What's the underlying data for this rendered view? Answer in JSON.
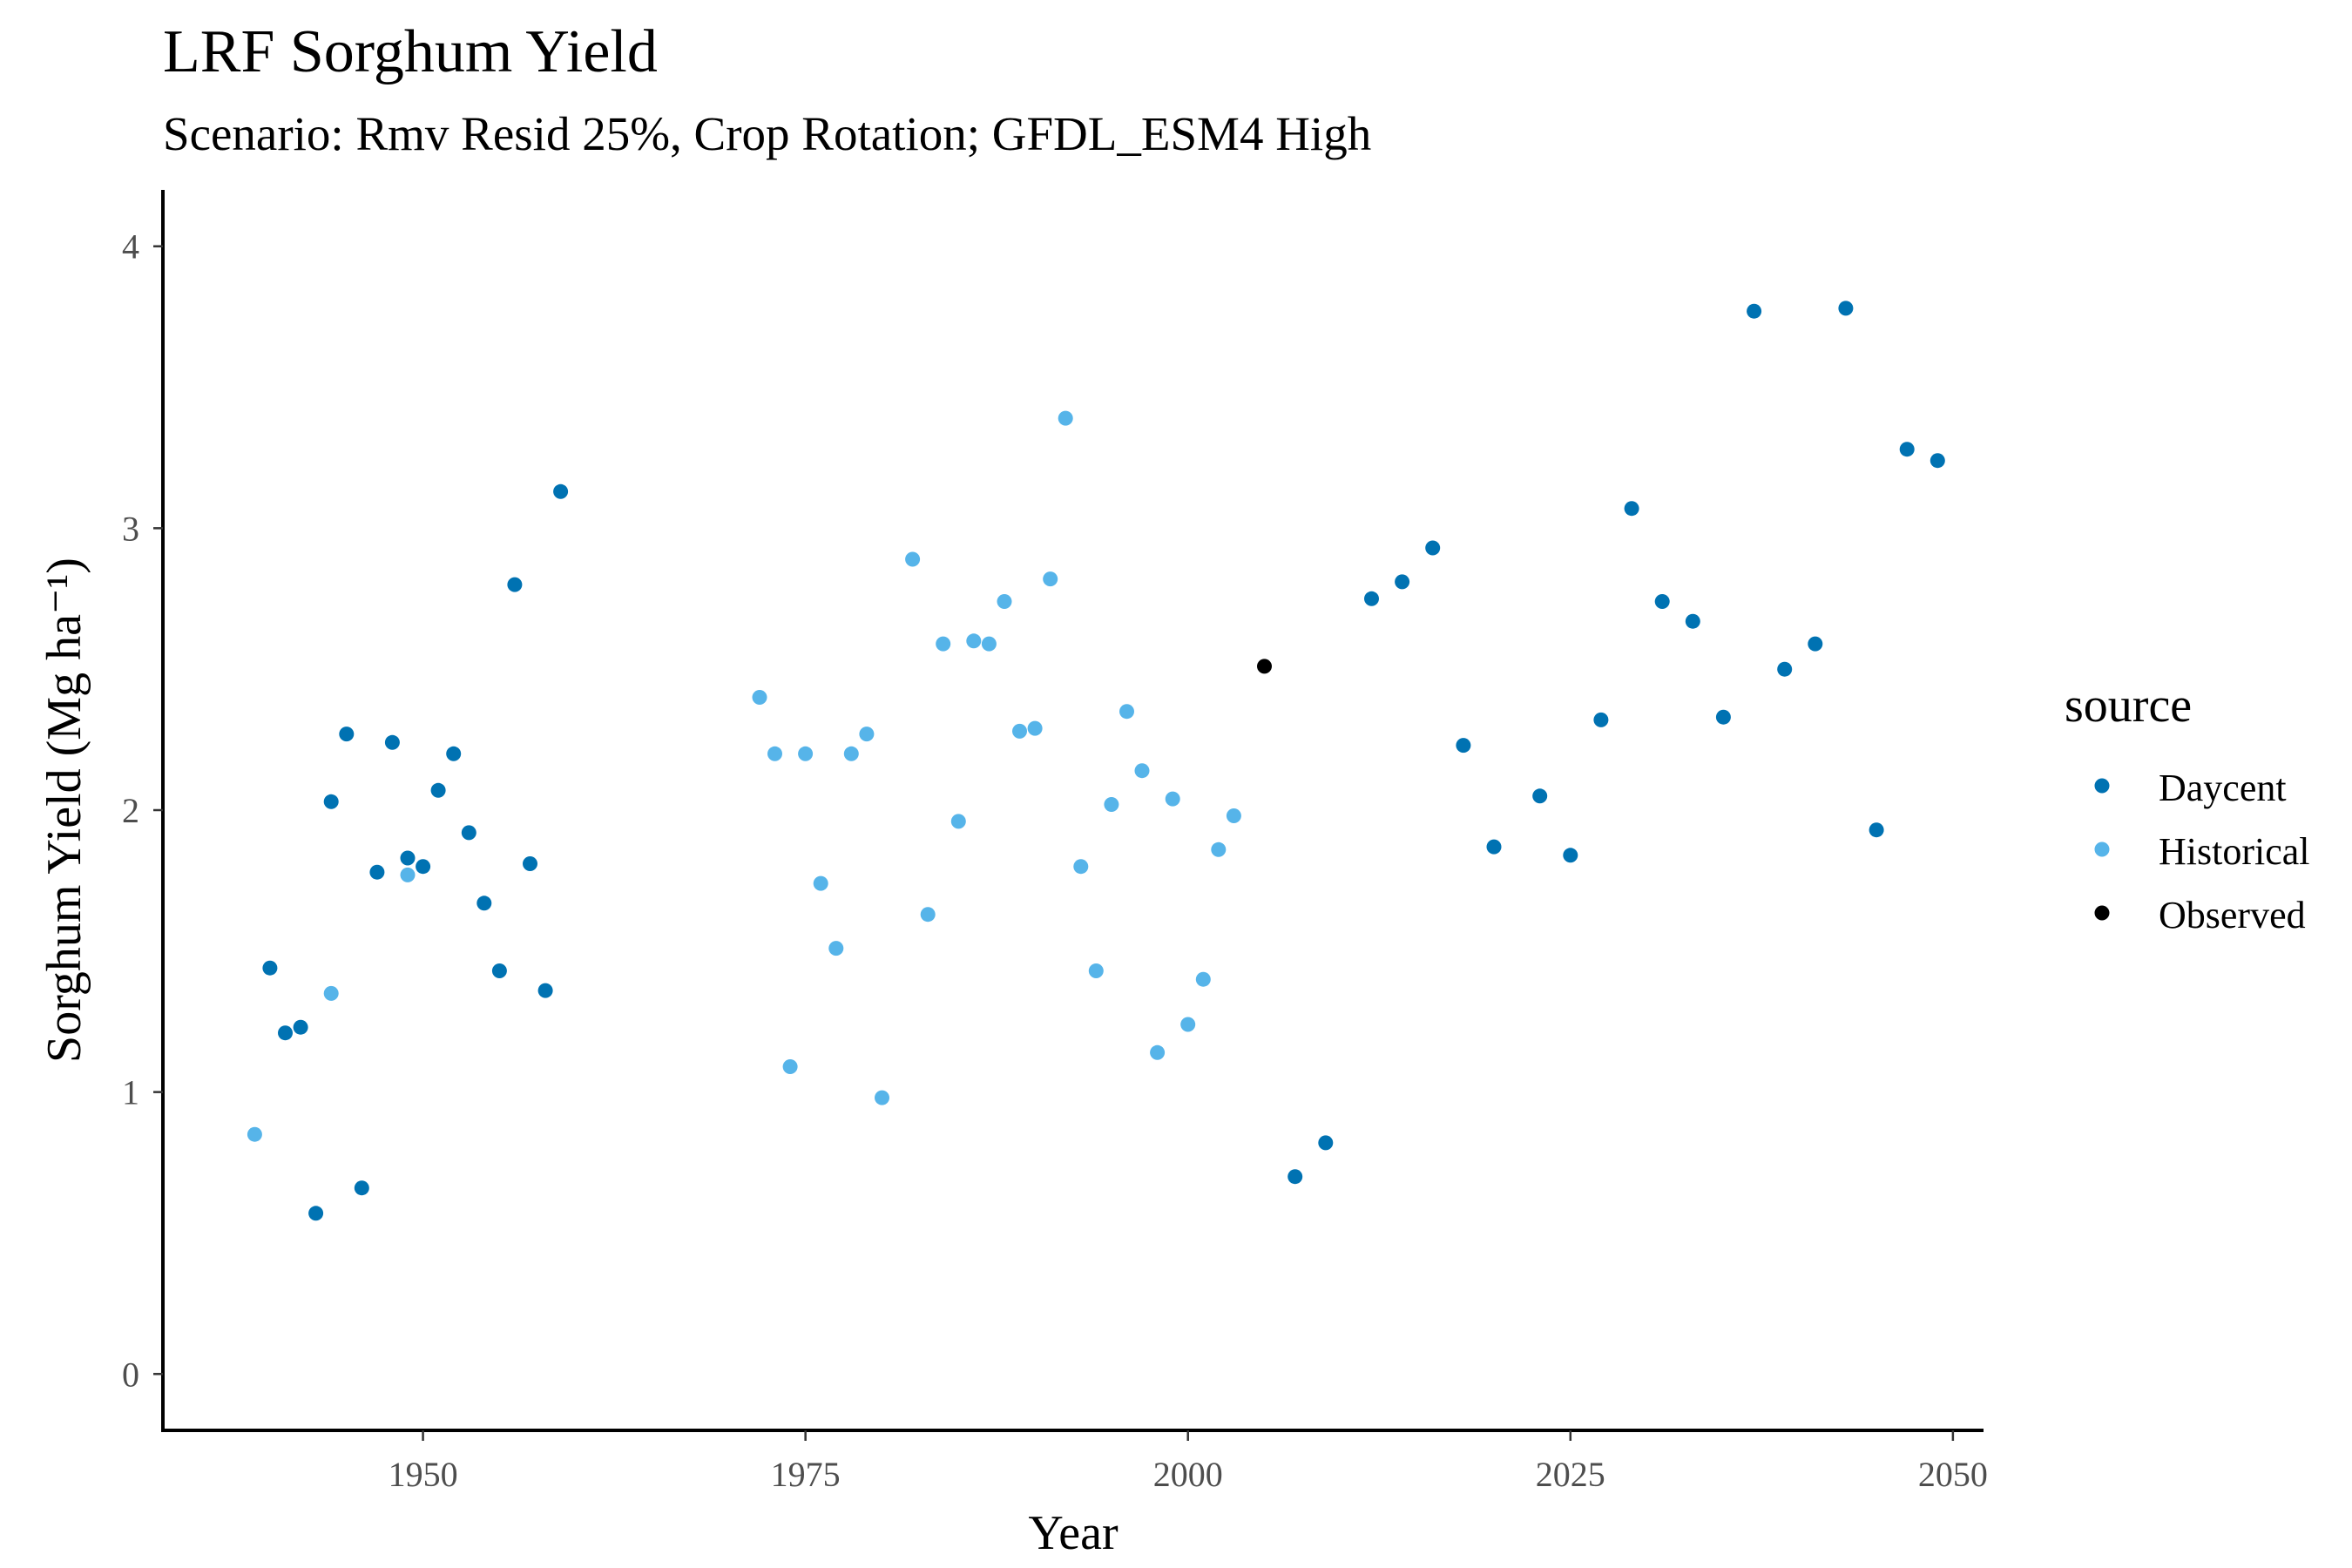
{
  "chart_data": {
    "type": "scatter",
    "title": "LRF Sorghum Yield",
    "subtitle": "Scenario: Rmv Resid 25%, Crop Rotation; GFDL_ESM4 High",
    "xlabel": "Year",
    "ylabel": "Sorghum Yield (Mg ha⁻¹)",
    "xlim": [
      1933,
      2052
    ],
    "ylim": [
      -0.2,
      4.2
    ],
    "x_ticks": [
      1950,
      1975,
      2000,
      2025,
      2050
    ],
    "y_ticks": [
      0,
      1,
      2,
      3,
      4
    ],
    "grid": false,
    "legend": {
      "title": "source",
      "position": "right"
    },
    "series": [
      {
        "name": "Daycent",
        "color": "#0072b2",
        "points": [
          [
            1940,
            1.44
          ],
          [
            1941,
            1.21
          ],
          [
            1942,
            1.23
          ],
          [
            1943,
            0.57
          ],
          [
            1944,
            2.03
          ],
          [
            1945,
            2.27
          ],
          [
            1946,
            0.66
          ],
          [
            1947,
            1.78
          ],
          [
            1948,
            2.24
          ],
          [
            1949,
            1.83
          ],
          [
            1950,
            1.8
          ],
          [
            1951,
            2.07
          ],
          [
            1952,
            2.2
          ],
          [
            1953,
            1.92
          ],
          [
            1954,
            1.67
          ],
          [
            1955,
            1.43
          ],
          [
            1956,
            2.8
          ],
          [
            1957,
            1.81
          ],
          [
            1958,
            1.36
          ],
          [
            1959,
            3.13
          ],
          [
            2007,
            0.7
          ],
          [
            2009,
            0.82
          ],
          [
            2012,
            2.75
          ],
          [
            2014,
            2.81
          ],
          [
            2016,
            2.93
          ],
          [
            2018,
            2.23
          ],
          [
            2020,
            1.87
          ],
          [
            2023,
            2.05
          ],
          [
            2025,
            1.84
          ],
          [
            2027,
            2.32
          ],
          [
            2029,
            3.07
          ],
          [
            2031,
            2.74
          ],
          [
            2033,
            2.67
          ],
          [
            2035,
            2.33
          ],
          [
            2037,
            3.77
          ],
          [
            2039,
            2.5
          ],
          [
            2041,
            2.59
          ],
          [
            2043,
            3.78
          ],
          [
            2045,
            1.93
          ],
          [
            2047,
            3.28
          ],
          [
            2049,
            3.24
          ]
        ]
      },
      {
        "name": "Historical",
        "color": "#56b4e9",
        "points": [
          [
            1939,
            0.85
          ],
          [
            1944,
            1.35
          ],
          [
            1949,
            1.77
          ],
          [
            1972,
            2.4
          ],
          [
            1973,
            2.2
          ],
          [
            1974,
            1.09
          ],
          [
            1975,
            2.2
          ],
          [
            1976,
            1.74
          ],
          [
            1977,
            1.51
          ],
          [
            1978,
            2.2
          ],
          [
            1979,
            2.27
          ],
          [
            1980,
            0.98
          ],
          [
            1982,
            2.89
          ],
          [
            1983,
            1.63
          ],
          [
            1984,
            2.59
          ],
          [
            1985,
            1.96
          ],
          [
            1986,
            2.6
          ],
          [
            1987,
            2.59
          ],
          [
            1988,
            2.74
          ],
          [
            1989,
            2.28
          ],
          [
            1990,
            2.29
          ],
          [
            1991,
            2.82
          ],
          [
            1992,
            3.39
          ],
          [
            1993,
            1.8
          ],
          [
            1994,
            1.43
          ],
          [
            1995,
            2.02
          ],
          [
            1996,
            2.35
          ],
          [
            1997,
            2.14
          ],
          [
            1998,
            1.14
          ],
          [
            1999,
            2.04
          ],
          [
            2000,
            1.24
          ],
          [
            2001,
            1.4
          ],
          [
            2002,
            1.86
          ],
          [
            2003,
            1.98
          ]
        ]
      },
      {
        "name": "Observed",
        "color": "#000000",
        "points": [
          [
            2005,
            2.51
          ]
        ]
      }
    ]
  }
}
